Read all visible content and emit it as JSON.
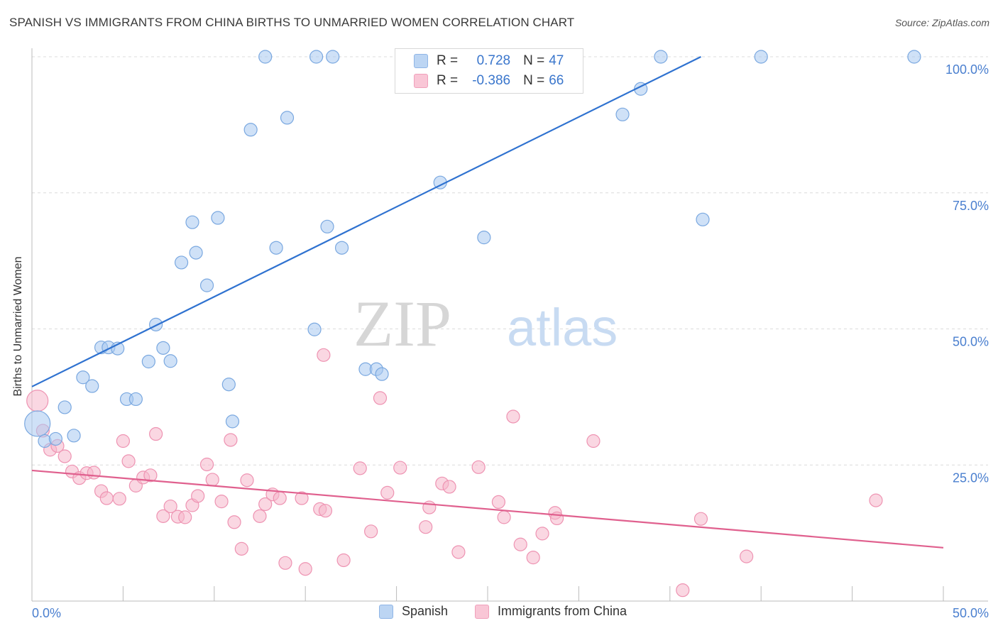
{
  "title": "SPANISH VS IMMIGRANTS FROM CHINA BIRTHS TO UNMARRIED WOMEN CORRELATION CHART",
  "source": "Source: ZipAtlas.com",
  "watermark": {
    "zip": "ZIP",
    "atlas": "atlas"
  },
  "legend": {
    "r_label": "R =",
    "n_label": "N =",
    "rows": [
      {
        "r": "0.728",
        "n": "47"
      },
      {
        "r": "-0.386",
        "n": "66"
      }
    ]
  },
  "bottom_legend": [
    "Spanish",
    "Immigrants from China"
  ],
  "chart_data": {
    "type": "scatter",
    "ylabel": "Births to Unmarried Women",
    "xlim": [
      0,
      50
    ],
    "ylim": [
      0,
      100
    ],
    "x_tick_labels": [
      "0.0%",
      "50.0%"
    ],
    "y_tick_labels": [
      "25.0%",
      "50.0%",
      "75.0%",
      "100.0%"
    ],
    "y_ticks": [
      25,
      50,
      75,
      100
    ],
    "grid": true,
    "legend_position": "top-center",
    "colors": {
      "Spanish": {
        "fill": "#a8c8f0",
        "stroke": "#7aa8e0",
        "line": "#2f72d0"
      },
      "Immigrants from China": {
        "fill": "#f6b6ca",
        "stroke": "#ee93b2",
        "line": "#e0608e"
      }
    },
    "series": [
      {
        "name": "Spanish",
        "trend": {
          "x": [
            0,
            36.7
          ],
          "y": [
            39.4,
            100
          ]
        },
        "points": [
          [
            0.3,
            32.6
          ],
          [
            0.7,
            29.4
          ],
          [
            1.3,
            29.8
          ],
          [
            1.8,
            35.6
          ],
          [
            2.3,
            30.4
          ],
          [
            2.8,
            41.1
          ],
          [
            3.3,
            39.5
          ],
          [
            3.8,
            46.6
          ],
          [
            4.2,
            46.6
          ],
          [
            4.7,
            46.4
          ],
          [
            5.2,
            37.1
          ],
          [
            5.7,
            37.1
          ],
          [
            6.4,
            44.0
          ],
          [
            6.8,
            50.8
          ],
          [
            7.2,
            46.5
          ],
          [
            7.6,
            44.1
          ],
          [
            8.2,
            62.2
          ],
          [
            8.8,
            69.6
          ],
          [
            9.0,
            64.0
          ],
          [
            9.6,
            58.0
          ],
          [
            10.2,
            70.4
          ],
          [
            10.8,
            39.8
          ],
          [
            11.0,
            33.0
          ],
          [
            12.0,
            86.6
          ],
          [
            12.8,
            100
          ],
          [
            13.4,
            64.9
          ],
          [
            14.0,
            88.8
          ],
          [
            15.5,
            49.9
          ],
          [
            15.6,
            100
          ],
          [
            16.2,
            68.8
          ],
          [
            16.5,
            100
          ],
          [
            17.0,
            64.9
          ],
          [
            18.3,
            42.6
          ],
          [
            18.9,
            42.6
          ],
          [
            19.2,
            41.7
          ],
          [
            21.4,
            100
          ],
          [
            22.4,
            76.9
          ],
          [
            23.8,
            100
          ],
          [
            24.8,
            66.8
          ],
          [
            27.4,
            100
          ],
          [
            28.5,
            100
          ],
          [
            32.4,
            89.4
          ],
          [
            33.4,
            94.1
          ],
          [
            34.5,
            100
          ],
          [
            36.8,
            70.1
          ],
          [
            48.4,
            100
          ],
          [
            40.0,
            100
          ]
        ]
      },
      {
        "name": "Immigrants from China",
        "trend": {
          "x": [
            0,
            50
          ],
          "y": [
            24.0,
            9.8
          ]
        },
        "points": [
          [
            0.3,
            36.8
          ],
          [
            0.6,
            31.3
          ],
          [
            1.0,
            27.8
          ],
          [
            1.4,
            28.5
          ],
          [
            1.8,
            26.6
          ],
          [
            2.2,
            23.8
          ],
          [
            2.6,
            22.6
          ],
          [
            3.0,
            23.5
          ],
          [
            3.4,
            23.6
          ],
          [
            3.8,
            20.2
          ],
          [
            4.1,
            18.9
          ],
          [
            4.8,
            18.8
          ],
          [
            5.0,
            29.4
          ],
          [
            5.3,
            25.7
          ],
          [
            5.7,
            21.2
          ],
          [
            6.1,
            22.7
          ],
          [
            6.5,
            23.1
          ],
          [
            6.8,
            30.7
          ],
          [
            7.2,
            15.6
          ],
          [
            7.6,
            17.4
          ],
          [
            8.0,
            15.5
          ],
          [
            8.4,
            15.4
          ],
          [
            8.8,
            17.6
          ],
          [
            9.1,
            19.3
          ],
          [
            9.6,
            25.1
          ],
          [
            9.9,
            22.3
          ],
          [
            10.4,
            18.3
          ],
          [
            10.9,
            29.6
          ],
          [
            11.1,
            14.5
          ],
          [
            11.5,
            9.6
          ],
          [
            11.8,
            22.2
          ],
          [
            12.5,
            15.6
          ],
          [
            12.8,
            17.8
          ],
          [
            13.2,
            19.6
          ],
          [
            13.6,
            18.9
          ],
          [
            13.9,
            7.0
          ],
          [
            14.8,
            18.9
          ],
          [
            15.0,
            5.9
          ],
          [
            15.8,
            16.9
          ],
          [
            16.1,
            16.6
          ],
          [
            16.0,
            45.2
          ],
          [
            17.1,
            7.5
          ],
          [
            18.0,
            24.4
          ],
          [
            18.6,
            12.8
          ],
          [
            19.1,
            37.3
          ],
          [
            19.5,
            19.9
          ],
          [
            20.2,
            24.5
          ],
          [
            21.6,
            13.6
          ],
          [
            21.8,
            17.2
          ],
          [
            22.5,
            21.6
          ],
          [
            22.9,
            21.0
          ],
          [
            23.4,
            9.0
          ],
          [
            24.5,
            24.6
          ],
          [
            25.6,
            18.2
          ],
          [
            25.9,
            15.4
          ],
          [
            26.4,
            33.9
          ],
          [
            26.8,
            10.4
          ],
          [
            27.5,
            8.0
          ],
          [
            28.0,
            12.4
          ],
          [
            28.7,
            16.2
          ],
          [
            28.8,
            15.2
          ],
          [
            30.8,
            29.4
          ],
          [
            35.7,
            2.0
          ],
          [
            36.7,
            15.1
          ],
          [
            39.2,
            8.2
          ],
          [
            46.3,
            18.5
          ]
        ]
      }
    ]
  }
}
